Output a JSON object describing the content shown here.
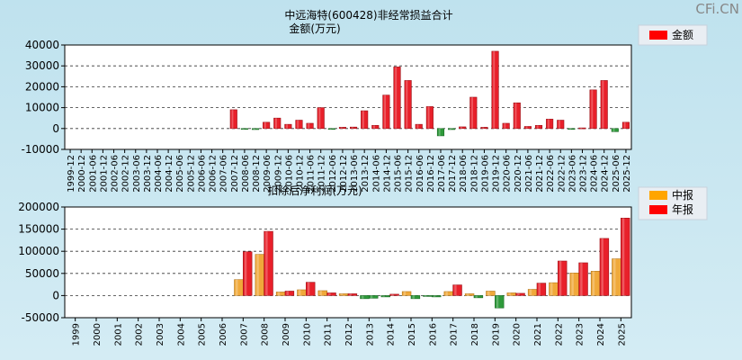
{
  "watermark": "CFi.CN",
  "chart_data": [
    {
      "type": "bar",
      "title": "中远海特(600428)非经常损益合计",
      "subtitle": "金额(万元)",
      "legend": [
        {
          "name": "金额",
          "color": "#ff0000"
        }
      ],
      "ylim": [
        -10000,
        40000
      ],
      "yticks": [
        40000,
        30000,
        20000,
        10000,
        0,
        -10000
      ],
      "categories": [
        "1999-12",
        "2000-12",
        "2001-06",
        "2001-12",
        "2002-06",
        "2002-12",
        "2003-06",
        "2003-12",
        "2004-06",
        "2004-12",
        "2005-06",
        "2005-12",
        "2006-06",
        "2006-12",
        "2007-06",
        "2007-12",
        "2008-06",
        "2008-12",
        "2009-06",
        "2009-12",
        "2010-06",
        "2010-12",
        "2011-06",
        "2011-12",
        "2012-06",
        "2012-12",
        "2013-06",
        "2013-12",
        "2014-06",
        "2014-12",
        "2015-06",
        "2015-12",
        "2016-06",
        "2016-12",
        "2017-06",
        "2017-12",
        "2018-06",
        "2018-12",
        "2019-06",
        "2019-12",
        "2020-06",
        "2020-12",
        "2021-06",
        "2021-12",
        "2022-06",
        "2022-12",
        "2023-06",
        "2023-12",
        "2024-06",
        "2024-12",
        "2025-06",
        "2025-12"
      ],
      "values": [
        0,
        0,
        0,
        0,
        0,
        0,
        0,
        0,
        0,
        0,
        0,
        0,
        0,
        0,
        0,
        9000,
        -300,
        -500,
        3000,
        5000,
        2000,
        4000,
        2500,
        10000,
        -300,
        600,
        700,
        8500,
        1500,
        16000,
        29500,
        23000,
        2000,
        10500,
        -3500,
        -500,
        800,
        15000,
        600,
        37000,
        2500,
        12300,
        1000,
        1500,
        4500,
        4000,
        -300,
        300,
        18500,
        23000,
        -1500,
        3000
      ]
    },
    {
      "type": "bar",
      "title": "扣除后净利润(万元)",
      "legend": [
        {
          "name": "中报",
          "color": "#ffa500"
        },
        {
          "name": "年报",
          "color": "#ff0000"
        }
      ],
      "ylim": [
        -50000,
        200000
      ],
      "yticks": [
        200000,
        150000,
        100000,
        50000,
        0,
        -50000
      ],
      "categories": [
        "1999",
        "2000",
        "2001",
        "2002",
        "2003",
        "2004",
        "2005",
        "2006",
        "2007",
        "2008",
        "2009",
        "2010",
        "2011",
        "2012",
        "2013",
        "2014",
        "2015",
        "2016",
        "2017",
        "2018",
        "2019",
        "2020",
        "2021",
        "2022",
        "2023",
        "2024",
        "2025"
      ],
      "series": [
        {
          "name": "中报",
          "values": [
            0,
            0,
            0,
            0,
            0,
            0,
            0,
            0,
            36000,
            93000,
            8000,
            13000,
            11000,
            4000,
            -7000,
            -3000,
            9000,
            -2000,
            9000,
            4000,
            10000,
            6000,
            14000,
            29000,
            51000,
            55000,
            83000
          ]
        },
        {
          "name": "年报",
          "values": [
            0,
            0,
            0,
            0,
            0,
            0,
            0,
            0,
            99000,
            145000,
            10000,
            30000,
            6000,
            4000,
            -6000,
            3000,
            -7000,
            -3000,
            24000,
            -5000,
            -28000,
            5000,
            28000,
            78000,
            74000,
            129000,
            175000
          ]
        }
      ]
    }
  ]
}
